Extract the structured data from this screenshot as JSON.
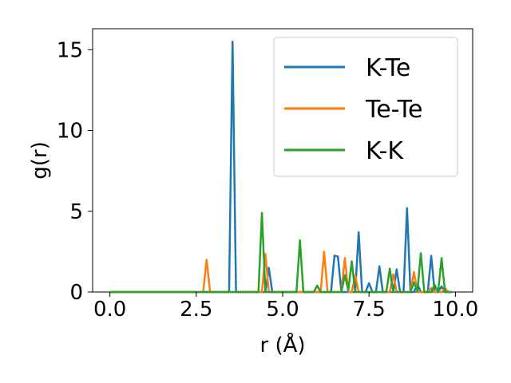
{
  "chart_data": {
    "type": "line",
    "title": "",
    "xlabel": "r (Å)",
    "ylabel": "g(r)",
    "xlim": [
      -0.5,
      10.5
    ],
    "ylim": [
      0,
      16.3
    ],
    "xticks": [
      0.0,
      2.5,
      5.0,
      7.5,
      10.0
    ],
    "xtick_labels": [
      "0.0",
      "2.5",
      "5.0",
      "7.5",
      "10.0"
    ],
    "yticks": [
      0,
      5,
      10,
      15
    ],
    "ytick_labels": [
      "0",
      "5",
      "10",
      "15"
    ],
    "grid": false,
    "legend": "upper right",
    "series": [
      {
        "name": "K-Te",
        "color": "#1f77b4",
        "points": [
          [
            0.0,
            0
          ],
          [
            3.45,
            0
          ],
          [
            3.55,
            15.5
          ],
          [
            3.65,
            0
          ],
          [
            4.5,
            0
          ],
          [
            4.6,
            1.5
          ],
          [
            4.7,
            0
          ],
          [
            6.4,
            0
          ],
          [
            6.5,
            2.25
          ],
          [
            6.6,
            2.2
          ],
          [
            6.7,
            0
          ],
          [
            7.1,
            0
          ],
          [
            7.2,
            3.7
          ],
          [
            7.3,
            0
          ],
          [
            7.4,
            0
          ],
          [
            7.5,
            0.55
          ],
          [
            7.6,
            0
          ],
          [
            7.7,
            0
          ],
          [
            7.8,
            1.6
          ],
          [
            7.9,
            0
          ],
          [
            8.2,
            0
          ],
          [
            8.3,
            1.4
          ],
          [
            8.4,
            0
          ],
          [
            8.5,
            0
          ],
          [
            8.6,
            5.2
          ],
          [
            8.7,
            0
          ],
          [
            8.8,
            0
          ],
          [
            8.9,
            0.5
          ],
          [
            9.0,
            0
          ],
          [
            9.2,
            0
          ],
          [
            9.3,
            2.25
          ],
          [
            9.4,
            0
          ],
          [
            9.5,
            0
          ],
          [
            9.6,
            0.35
          ],
          [
            9.7,
            0
          ],
          [
            9.9,
            0
          ]
        ]
      },
      {
        "name": "Te-Te",
        "color": "#ff7f0e",
        "points": [
          [
            0.0,
            0
          ],
          [
            2.7,
            0
          ],
          [
            2.8,
            2.0
          ],
          [
            2.9,
            0
          ],
          [
            4.4,
            0
          ],
          [
            4.5,
            2.35
          ],
          [
            4.6,
            0
          ],
          [
            6.1,
            0
          ],
          [
            6.2,
            2.5
          ],
          [
            6.3,
            0
          ],
          [
            6.7,
            0
          ],
          [
            6.8,
            2.1
          ],
          [
            6.9,
            0
          ],
          [
            7.0,
            0
          ],
          [
            7.1,
            1.05
          ],
          [
            7.2,
            0
          ],
          [
            8.1,
            0
          ],
          [
            8.2,
            1.1
          ],
          [
            8.3,
            0
          ],
          [
            8.7,
            0
          ],
          [
            8.8,
            1.25
          ],
          [
            8.9,
            0
          ],
          [
            9.2,
            0
          ],
          [
            9.3,
            0.25
          ],
          [
            9.4,
            0
          ],
          [
            9.6,
            0
          ],
          [
            9.7,
            0.25
          ],
          [
            9.8,
            0
          ],
          [
            9.9,
            0
          ]
        ]
      },
      {
        "name": "K-K",
        "color": "#2ca02c",
        "points": [
          [
            0.0,
            0
          ],
          [
            4.3,
            0
          ],
          [
            4.4,
            4.9
          ],
          [
            4.5,
            0
          ],
          [
            5.4,
            0
          ],
          [
            5.5,
            3.2
          ],
          [
            5.6,
            0
          ],
          [
            5.9,
            0
          ],
          [
            6.0,
            0.4
          ],
          [
            6.1,
            0
          ],
          [
            6.7,
            0
          ],
          [
            6.8,
            1.05
          ],
          [
            6.9,
            0.1
          ],
          [
            7.0,
            1.9
          ],
          [
            7.1,
            0
          ],
          [
            8.0,
            0
          ],
          [
            8.1,
            1.45
          ],
          [
            8.2,
            0
          ],
          [
            8.7,
            0
          ],
          [
            8.8,
            0.6
          ],
          [
            8.9,
            0.05
          ],
          [
            9.0,
            2.4
          ],
          [
            9.1,
            0
          ],
          [
            9.3,
            0
          ],
          [
            9.4,
            0.45
          ],
          [
            9.5,
            0
          ],
          [
            9.6,
            2.1
          ],
          [
            9.7,
            0
          ],
          [
            9.9,
            0
          ]
        ]
      }
    ]
  }
}
